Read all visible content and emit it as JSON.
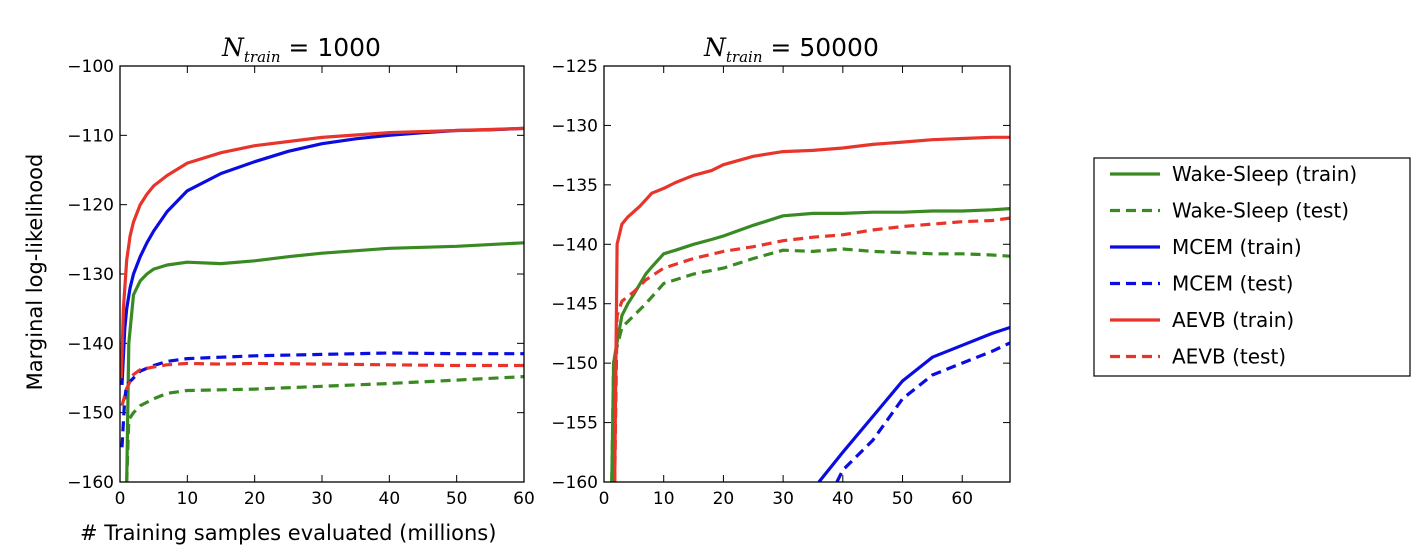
{
  "chart_data": {
    "type": "line",
    "shared": {
      "xlabel": "# Training samples evaluated (millions)",
      "ylabel": "Marginal log-likelihood"
    },
    "legend": {
      "placement": "right",
      "entries": [
        {
          "name": "Wake-Sleep (train)",
          "color": "#3a8a23",
          "style": "solid"
        },
        {
          "name": "Wake-Sleep (test)",
          "color": "#3a8a23",
          "style": "dashed"
        },
        {
          "name": "MCEM (train)",
          "color": "#0a0ce0",
          "style": "solid"
        },
        {
          "name": "MCEM (test)",
          "color": "#0a0ce0",
          "style": "dashed"
        },
        {
          "name": "AEVB (train)",
          "color": "#e8352b",
          "style": "solid"
        },
        {
          "name": "AEVB (test)",
          "color": "#e8352b",
          "style": "dashed"
        }
      ]
    },
    "panels": [
      {
        "title": {
          "var": "N",
          "sub": "train",
          "rest": " = 1000"
        },
        "xlim": [
          0,
          60
        ],
        "ylim": [
          -160,
          -100
        ],
        "xticks": [
          "0",
          "10",
          "20",
          "30",
          "40",
          "50",
          "60"
        ],
        "yticks": [
          "−160",
          "−150",
          "−140",
          "−130",
          "−120",
          "−110",
          "−100"
        ],
        "series": [
          {
            "name": "Wake-Sleep (train)",
            "color": "#3a8a23",
            "style": "solid",
            "x": [
              1,
              1.3,
              2,
              3,
              4,
              5,
              7,
              10,
              15,
              20,
              25,
              30,
              40,
              50,
              60
            ],
            "y": [
              -160,
              -140,
              -133,
              -131,
              -130,
              -129.3,
              -128.7,
              -128.3,
              -128.5,
              -128.1,
              -127.5,
              -127,
              -126.3,
              -126,
              -125.5
            ]
          },
          {
            "name": "Wake-Sleep (test)",
            "color": "#3a8a23",
            "style": "dashed",
            "x": [
              1,
              1.3,
              2,
              3,
              5,
              7,
              10,
              15,
              20,
              30,
              40,
              50,
              60
            ],
            "y": [
              -160,
              -151,
              -150,
              -149,
              -148,
              -147.2,
              -146.8,
              -146.7,
              -146.6,
              -146.2,
              -145.8,
              -145.3,
              -144.8
            ]
          },
          {
            "name": "MCEM (train)",
            "color": "#0a0ce0",
            "style": "solid",
            "x": [
              0.3,
              0.7,
              1,
              1.5,
              2,
              3,
              4,
              5,
              7,
              10,
              15,
              20,
              25,
              30,
              35,
              40,
              45,
              50,
              55,
              60
            ],
            "y": [
              -146,
              -138,
              -135,
              -132,
              -130,
              -127.5,
              -125.5,
              -123.8,
              -121,
              -118,
              -115.5,
              -113.8,
              -112.3,
              -111.2,
              -110.5,
              -110,
              -109.6,
              -109.3,
              -109.2,
              -109
            ]
          },
          {
            "name": "MCEM (test)",
            "color": "#0a0ce0",
            "style": "dashed",
            "x": [
              0.3,
              0.7,
              1,
              2,
              3,
              5,
              7,
              10,
              15,
              20,
              30,
              40,
              50,
              60
            ],
            "y": [
              -155,
              -148,
              -146,
              -145,
              -144,
              -143.2,
              -142.6,
              -142.2,
              -142,
              -141.8,
              -141.6,
              -141.4,
              -141.5,
              -141.5
            ]
          },
          {
            "name": "AEVB (train)",
            "color": "#e8352b",
            "style": "solid",
            "x": [
              0.2,
              0.5,
              1,
              1.5,
              2,
              3,
              4,
              5,
              7,
              10,
              15,
              20,
              30,
              40,
              50,
              60
            ],
            "y": [
              -145,
              -135,
              -128,
              -124.5,
              -122.5,
              -120,
              -118.5,
              -117.3,
              -115.8,
              -114,
              -112.5,
              -111.5,
              -110.3,
              -109.6,
              -109.3,
              -109
            ]
          },
          {
            "name": "AEVB (test)",
            "color": "#e8352b",
            "style": "dashed",
            "x": [
              0.3,
              1,
              2,
              3,
              5,
              7,
              10,
              15,
              20,
              30,
              40,
              50,
              60
            ],
            "y": [
              -149,
              -146.5,
              -144.5,
              -143.8,
              -143.4,
              -143.1,
              -142.9,
              -143,
              -142.9,
              -143,
              -143.1,
              -143.2,
              -143.2
            ]
          }
        ]
      },
      {
        "title": {
          "var": "N",
          "sub": "train",
          "rest": " = 50000"
        },
        "xlim": [
          0,
          68
        ],
        "ylim": [
          -160,
          -125
        ],
        "xticks": [
          "0",
          "10",
          "20",
          "30",
          "40",
          "50",
          "60"
        ],
        "yticks": [
          "−160",
          "−155",
          "−150",
          "−145",
          "−140",
          "−135",
          "−130",
          "−125"
        ],
        "series": [
          {
            "name": "Wake-Sleep (train)",
            "color": "#3a8a23",
            "style": "solid",
            "x": [
              1.3,
              1.6,
              2,
              3,
              4,
              5,
              7,
              8,
              10,
              12,
              15,
              18,
              20,
              25,
              30,
              35,
              40,
              45,
              50,
              55,
              60,
              65,
              68
            ],
            "y": [
              -160,
              -150,
              -148.8,
              -146,
              -145,
              -144.2,
              -142.5,
              -141.9,
              -140.8,
              -140.5,
              -140,
              -139.6,
              -139.3,
              -138.4,
              -137.6,
              -137.4,
              -137.4,
              -137.3,
              -137.3,
              -137.2,
              -137.2,
              -137.1,
              -137
            ]
          },
          {
            "name": "Wake-Sleep (test)",
            "color": "#3a8a23",
            "style": "dashed",
            "x": [
              1.3,
              1.6,
              2,
              3,
              4,
              5,
              7,
              10,
              15,
              20,
              25,
              30,
              35,
              40,
              45,
              50,
              55,
              60,
              65,
              68
            ],
            "y": [
              -160,
              -150,
              -149,
              -147,
              -146.5,
              -146,
              -145,
              -143.3,
              -142.5,
              -142,
              -141.2,
              -140.5,
              -140.6,
              -140.4,
              -140.6,
              -140.7,
              -140.8,
              -140.8,
              -140.9,
              -141
            ]
          },
          {
            "name": "MCEM (train)",
            "color": "#0a0ce0",
            "style": "solid",
            "x": [
              36,
              40,
              45,
              50,
              55,
              60,
              65,
              68
            ],
            "y": [
              -160,
              -157.5,
              -154.5,
              -151.5,
              -149.5,
              -148.5,
              -147.5,
              -147
            ]
          },
          {
            "name": "MCEM (test)",
            "color": "#0a0ce0",
            "style": "dashed",
            "x": [
              39,
              40,
              45,
              50,
              55,
              60,
              65,
              68
            ],
            "y": [
              -160,
              -159,
              -156.5,
              -153,
              -151,
              -150,
              -149,
              -148.3
            ]
          },
          {
            "name": "AEVB (train)",
            "color": "#e8352b",
            "style": "solid",
            "x": [
              1.8,
              2.2,
              3,
              4,
              6,
              8,
              10,
              12,
              15,
              18,
              20,
              25,
              30,
              35,
              40,
              45,
              50,
              55,
              60,
              65,
              68
            ],
            "y": [
              -160,
              -140,
              -138.3,
              -137.7,
              -136.8,
              -135.7,
              -135.3,
              -134.8,
              -134.2,
              -133.8,
              -133.3,
              -132.6,
              -132.2,
              -132.1,
              -131.9,
              -131.6,
              -131.4,
              -131.2,
              -131.1,
              -131,
              -131
            ]
          },
          {
            "name": "AEVB (test)",
            "color": "#e8352b",
            "style": "dashed",
            "x": [
              1.8,
              2.2,
              3,
              5,
              7,
              10,
              15,
              20,
              25,
              30,
              35,
              40,
              45,
              50,
              55,
              60,
              65,
              68
            ],
            "y": [
              -160,
              -146,
              -144.8,
              -144,
              -143,
              -142,
              -141.2,
              -140.6,
              -140.2,
              -139.7,
              -139.4,
              -139.2,
              -138.8,
              -138.5,
              -138.3,
              -138.1,
              -138,
              -137.8
            ]
          }
        ]
      }
    ]
  }
}
